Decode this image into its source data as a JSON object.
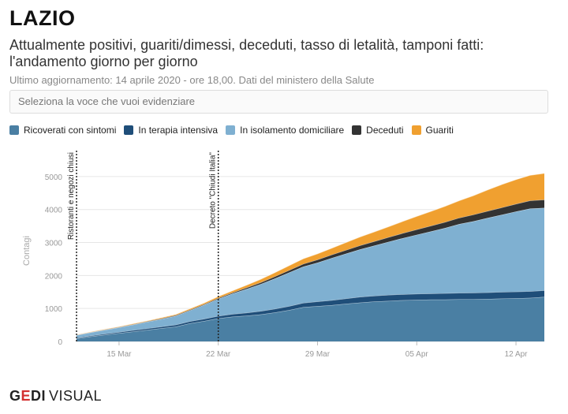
{
  "header": {
    "title": "LAZIO",
    "subtitle": "Attualmente positivi, guariti/dimessi, deceduti, tasso di letalità, tamponi fatti: l'andamento giorno per giorno",
    "update": "Ultimo aggiornamento: 14 aprile 2020 - ore 18,00. Dati del ministero della Salute"
  },
  "select": {
    "placeholder": "Seleziona la voce che vuoi evidenziare"
  },
  "legend": [
    {
      "label": "Ricoverati con sintomi",
      "color": "#4a7fa3"
    },
    {
      "label": "In terapia intensiva",
      "color": "#1f4e79"
    },
    {
      "label": "In isolamento domiciliare",
      "color": "#7fb0d1"
    },
    {
      "label": "Deceduti",
      "color": "#333333"
    },
    {
      "label": "Guariti",
      "color": "#f0a030"
    }
  ],
  "brand": {
    "g": "G",
    "e": "E",
    "di": "DI",
    "visual": "VISUAL"
  },
  "chart_data": {
    "type": "area",
    "stacked": true,
    "ylabel": "Contagi",
    "ylim": [
      0,
      5500
    ],
    "yticks": [
      0,
      1000,
      2000,
      3000,
      4000,
      5000
    ],
    "xtick_labels": [
      {
        "date": "2020-03-15",
        "label": "15 Mar"
      },
      {
        "date": "2020-03-22",
        "label": "22 Mar"
      },
      {
        "date": "2020-03-29",
        "label": "29 Mar"
      },
      {
        "date": "2020-04-05",
        "label": "05 Apr"
      },
      {
        "date": "2020-04-12",
        "label": "12 Apr"
      }
    ],
    "annotations": [
      {
        "date": "2020-03-12",
        "label": "Ristoranti e negozi chiusi"
      },
      {
        "date": "2020-03-22",
        "label": "Decreto \"Chiudi Italia\""
      }
    ],
    "x": [
      "2020-03-12",
      "2020-03-13",
      "2020-03-14",
      "2020-03-15",
      "2020-03-16",
      "2020-03-17",
      "2020-03-18",
      "2020-03-19",
      "2020-03-20",
      "2020-03-21",
      "2020-03-22",
      "2020-03-23",
      "2020-03-24",
      "2020-03-25",
      "2020-03-26",
      "2020-03-27",
      "2020-03-28",
      "2020-03-29",
      "2020-03-30",
      "2020-03-31",
      "2020-04-01",
      "2020-04-02",
      "2020-04-03",
      "2020-04-04",
      "2020-04-05",
      "2020-04-06",
      "2020-04-07",
      "2020-04-08",
      "2020-04-09",
      "2020-04-10",
      "2020-04-11",
      "2020-04-12",
      "2020-04-13",
      "2020-04-14"
    ],
    "series": [
      {
        "name": "Ricoverati con sintomi",
        "color": "#4a7fa3",
        "values": [
          90,
          150,
          200,
          250,
          300,
          350,
          400,
          450,
          550,
          620,
          700,
          750,
          780,
          820,
          880,
          950,
          1040,
          1070,
          1100,
          1140,
          1180,
          1210,
          1230,
          1250,
          1260,
          1270,
          1270,
          1280,
          1280,
          1290,
          1300,
          1310,
          1320,
          1350
        ]
      },
      {
        "name": "In terapia intensiva",
        "color": "#1f4e79",
        "values": [
          20,
          25,
          30,
          35,
          40,
          45,
          50,
          55,
          60,
          65,
          70,
          80,
          90,
          100,
          110,
          120,
          130,
          140,
          150,
          160,
          170,
          175,
          180,
          180,
          185,
          185,
          190,
          190,
          195,
          195,
          200,
          200,
          200,
          200
        ]
      },
      {
        "name": "In isolamento domiciliare",
        "color": "#7fb0d1",
        "values": [
          80,
          100,
          120,
          140,
          170,
          200,
          230,
          270,
          330,
          420,
          520,
          620,
          720,
          820,
          920,
          1020,
          1100,
          1180,
          1280,
          1360,
          1440,
          1520,
          1610,
          1700,
          1790,
          1880,
          1980,
          2090,
          2170,
          2260,
          2340,
          2430,
          2510,
          2500
        ]
      },
      {
        "name": "Deceduti",
        "color": "#333333",
        "values": [
          5,
          6,
          8,
          10,
          12,
          14,
          16,
          18,
          20,
          22,
          25,
          30,
          40,
          50,
          60,
          70,
          80,
          90,
          100,
          110,
          120,
          130,
          140,
          150,
          160,
          170,
          180,
          190,
          200,
          210,
          220,
          230,
          240,
          250
        ]
      },
      {
        "name": "Guariti",
        "color": "#f0a030",
        "values": [
          10,
          12,
          14,
          16,
          18,
          20,
          25,
          30,
          35,
          40,
          50,
          60,
          80,
          100,
          120,
          140,
          160,
          180,
          200,
          230,
          260,
          290,
          320,
          360,
          400,
          440,
          480,
          520,
          580,
          640,
          700,
          740,
          770,
          800
        ]
      }
    ]
  }
}
